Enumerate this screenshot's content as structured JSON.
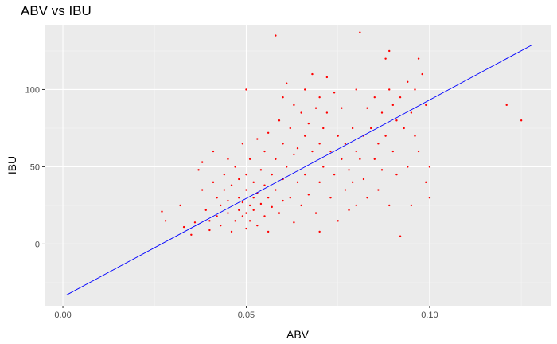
{
  "chart_data": {
    "type": "scatter",
    "title": "ABV vs IBU",
    "xlabel": "ABV",
    "ylabel": "IBU",
    "xlim": [
      -0.005,
      0.133
    ],
    "ylim": [
      -40,
      142
    ],
    "x_ticks": [
      0.0,
      0.05,
      0.1
    ],
    "x_tick_labels": [
      "0.00",
      "0.05",
      "0.10"
    ],
    "y_ticks": [
      0,
      50,
      100
    ],
    "y_tick_labels": [
      "0",
      "50",
      "100"
    ],
    "grid": true,
    "panel_background": "#ebebeb",
    "point_color": "#ff0000",
    "line_color": "#0000ff",
    "regression_line": {
      "x": [
        0.001,
        0.128
      ],
      "y": [
        -33,
        129
      ]
    },
    "points_note": "approximately 1400 points; listed points are a representative sample",
    "points": [
      [
        0.027,
        21
      ],
      [
        0.028,
        15
      ],
      [
        0.032,
        25
      ],
      [
        0.033,
        11
      ],
      [
        0.035,
        6
      ],
      [
        0.036,
        14
      ],
      [
        0.037,
        48
      ],
      [
        0.038,
        53
      ],
      [
        0.038,
        35
      ],
      [
        0.039,
        22
      ],
      [
        0.04,
        15
      ],
      [
        0.04,
        9
      ],
      [
        0.041,
        60
      ],
      [
        0.041,
        40
      ],
      [
        0.042,
        30
      ],
      [
        0.042,
        18
      ],
      [
        0.043,
        12
      ],
      [
        0.043,
        25
      ],
      [
        0.044,
        45
      ],
      [
        0.044,
        35
      ],
      [
        0.045,
        55
      ],
      [
        0.045,
        20
      ],
      [
        0.045,
        28
      ],
      [
        0.046,
        8
      ],
      [
        0.046,
        38
      ],
      [
        0.047,
        15
      ],
      [
        0.047,
        50
      ],
      [
        0.048,
        22
      ],
      [
        0.048,
        30
      ],
      [
        0.048,
        42
      ],
      [
        0.049,
        65
      ],
      [
        0.049,
        18
      ],
      [
        0.049,
        27
      ],
      [
        0.05,
        100
      ],
      [
        0.05,
        20
      ],
      [
        0.05,
        35
      ],
      [
        0.05,
        10
      ],
      [
        0.05,
        45
      ],
      [
        0.051,
        25
      ],
      [
        0.051,
        55
      ],
      [
        0.051,
        15
      ],
      [
        0.052,
        30
      ],
      [
        0.052,
        40
      ],
      [
        0.052,
        22
      ],
      [
        0.053,
        68
      ],
      [
        0.053,
        12
      ],
      [
        0.053,
        33
      ],
      [
        0.054,
        48
      ],
      [
        0.054,
        26
      ],
      [
        0.055,
        60
      ],
      [
        0.055,
        18
      ],
      [
        0.055,
        38
      ],
      [
        0.056,
        72
      ],
      [
        0.056,
        30
      ],
      [
        0.056,
        8
      ],
      [
        0.057,
        45
      ],
      [
        0.057,
        24
      ],
      [
        0.058,
        135
      ],
      [
        0.058,
        55
      ],
      [
        0.058,
        35
      ],
      [
        0.059,
        80
      ],
      [
        0.059,
        20
      ],
      [
        0.06,
        95
      ],
      [
        0.06,
        65
      ],
      [
        0.06,
        42
      ],
      [
        0.06,
        28
      ],
      [
        0.061,
        104
      ],
      [
        0.061,
        50
      ],
      [
        0.062,
        75
      ],
      [
        0.062,
        30
      ],
      [
        0.063,
        90
      ],
      [
        0.063,
        58
      ],
      [
        0.063,
        14
      ],
      [
        0.064,
        62
      ],
      [
        0.064,
        40
      ],
      [
        0.065,
        85
      ],
      [
        0.065,
        25
      ],
      [
        0.066,
        100
      ],
      [
        0.066,
        70
      ],
      [
        0.066,
        45
      ],
      [
        0.067,
        78
      ],
      [
        0.067,
        32
      ],
      [
        0.068,
        110
      ],
      [
        0.068,
        60
      ],
      [
        0.069,
        88
      ],
      [
        0.069,
        20
      ],
      [
        0.07,
        95
      ],
      [
        0.07,
        65
      ],
      [
        0.07,
        40
      ],
      [
        0.07,
        8
      ],
      [
        0.071,
        75
      ],
      [
        0.071,
        50
      ],
      [
        0.072,
        108
      ],
      [
        0.072,
        85
      ],
      [
        0.073,
        60
      ],
      [
        0.073,
        30
      ],
      [
        0.074,
        98
      ],
      [
        0.074,
        45
      ],
      [
        0.075,
        70
      ],
      [
        0.075,
        15
      ],
      [
        0.076,
        88
      ],
      [
        0.076,
        55
      ],
      [
        0.077,
        65
      ],
      [
        0.077,
        35
      ],
      [
        0.078,
        48
      ],
      [
        0.078,
        22
      ],
      [
        0.079,
        75
      ],
      [
        0.079,
        40
      ],
      [
        0.08,
        60
      ],
      [
        0.08,
        100
      ],
      [
        0.08,
        25
      ],
      [
        0.081,
        137
      ],
      [
        0.081,
        55
      ],
      [
        0.082,
        70
      ],
      [
        0.082,
        42
      ],
      [
        0.083,
        88
      ],
      [
        0.083,
        30
      ],
      [
        0.084,
        75
      ],
      [
        0.085,
        95
      ],
      [
        0.085,
        55
      ],
      [
        0.086,
        65
      ],
      [
        0.086,
        35
      ],
      [
        0.087,
        85
      ],
      [
        0.087,
        48
      ],
      [
        0.088,
        120
      ],
      [
        0.088,
        70
      ],
      [
        0.089,
        125
      ],
      [
        0.089,
        100
      ],
      [
        0.089,
        25
      ],
      [
        0.09,
        90
      ],
      [
        0.09,
        60
      ],
      [
        0.091,
        80
      ],
      [
        0.091,
        45
      ],
      [
        0.092,
        5
      ],
      [
        0.092,
        95
      ],
      [
        0.093,
        75
      ],
      [
        0.094,
        105
      ],
      [
        0.094,
        50
      ],
      [
        0.095,
        85
      ],
      [
        0.095,
        25
      ],
      [
        0.096,
        100
      ],
      [
        0.096,
        70
      ],
      [
        0.097,
        120
      ],
      [
        0.097,
        60
      ],
      [
        0.098,
        110
      ],
      [
        0.099,
        90
      ],
      [
        0.099,
        40
      ],
      [
        0.1,
        50
      ],
      [
        0.1,
        30
      ],
      [
        0.121,
        90
      ],
      [
        0.125,
        80
      ]
    ]
  }
}
